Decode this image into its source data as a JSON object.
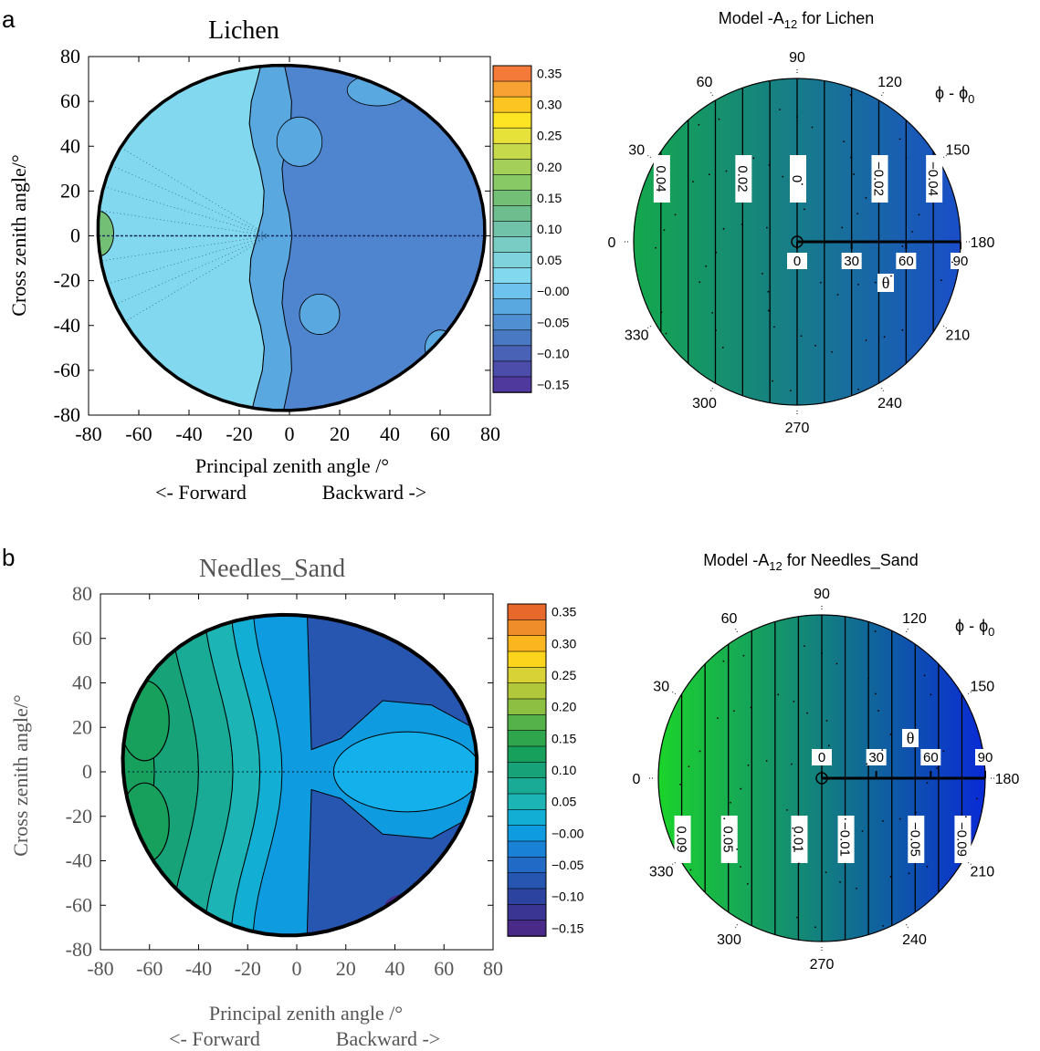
{
  "panel_labels": [
    "a",
    "b"
  ],
  "chart_data": [
    {
      "type": "heatmap",
      "title": "Lichen",
      "xlabel": "Principal zenith angle /°",
      "xlabel_sub_left": "<- Forward",
      "xlabel_sub_right": "Backward ->",
      "ylabel": "Cross zenith angle/°",
      "xlim": [
        -80,
        80
      ],
      "ylim": [
        -80,
        80
      ],
      "x_ticks": [
        "-80",
        "-60",
        "-40",
        "-20",
        "0",
        "20",
        "40",
        "60",
        "80"
      ],
      "y_ticks": [
        "80",
        "60",
        "40",
        "20",
        "0",
        "-20",
        "-40",
        "-60",
        "-80"
      ],
      "colorbar_ticks": [
        "0.35",
        "0.30",
        "0.25",
        "0.20",
        "0.15",
        "0.10",
        "0.05",
        "−0.00",
        "−0.05",
        "−0.10",
        "−0.15"
      ],
      "colorbar_levels": [
        0.35,
        0.325,
        0.3,
        0.275,
        0.25,
        0.225,
        0.2,
        0.175,
        0.15,
        0.125,
        0.1,
        0.075,
        0.05,
        0.025,
        0.0,
        -0.025,
        -0.05,
        -0.075,
        -0.1,
        -0.125,
        -0.15
      ],
      "colorbar_colors": [
        "#f47a3a",
        "#f8a233",
        "#fcc521",
        "#fde524",
        "#e6e23a",
        "#c5d94a",
        "#a4cf58",
        "#88c865",
        "#74bf76",
        "#6dbd8e",
        "#70c2a8",
        "#78ccc4",
        "#7fd3dc",
        "#82d8ee",
        "#6dc3ee",
        "#5aa8e0",
        "#4f8fd2",
        "#4a79c4",
        "#4a62b6",
        "#4c4caa",
        "#50399d"
      ],
      "regions": [
        {
          "name": "forward-region",
          "value": 0.05,
          "color": "#82d8ee"
        },
        {
          "name": "transition-band",
          "value": -0.0,
          "color": "#5aa8e0"
        },
        {
          "name": "backward-region",
          "value": -0.05,
          "color": "#4f84cf"
        }
      ]
    },
    {
      "type": "heatmap",
      "title": "Model -A12 for Lichen",
      "title_main": "Model -A",
      "title_sub": "12",
      "title_tail": " for Lichen",
      "azimuth_label": "ϕ - ϕ0",
      "azimuth_main": "ϕ - ϕ",
      "azimuth_sub": "0",
      "azimuth_ticks": [
        "0",
        "30",
        "60",
        "90",
        "120",
        "150",
        "180",
        "210",
        "240",
        "270",
        "300",
        "330"
      ],
      "radial_label": "θ",
      "radial_ticks": [
        "0",
        "30",
        "60",
        "90"
      ],
      "contour_labels": [
        "0.04",
        "0.02",
        "0",
        "−0.02",
        "−0.04"
      ],
      "contour_values": [
        0.04,
        0.02,
        0,
        -0.02,
        -0.04
      ],
      "color_range": {
        "start": "#14a84c",
        "end": "#1a4ec8"
      }
    },
    {
      "type": "heatmap",
      "title": "Needles_Sand",
      "xlabel": "Principal zenith angle /°",
      "xlabel_sub_left": "<- Forward",
      "xlabel_sub_right": "Backward ->",
      "ylabel": "Cross zenith angle/°",
      "xlim": [
        -80,
        80
      ],
      "ylim": [
        -80,
        80
      ],
      "x_ticks": [
        "-80",
        "-60",
        "-40",
        "-20",
        "0",
        "20",
        "40",
        "60",
        "80"
      ],
      "y_ticks": [
        "80",
        "60",
        "40",
        "20",
        "0",
        "-20",
        "-40",
        "-60",
        "-80"
      ],
      "colorbar_ticks": [
        "0.35",
        "0.30",
        "0.25",
        "0.20",
        "0.15",
        "0.10",
        "0.05",
        "−0.00",
        "−0.05",
        "−0.10",
        "−0.15"
      ],
      "colorbar_levels": [
        0.35,
        0.325,
        0.3,
        0.275,
        0.25,
        0.225,
        0.2,
        0.175,
        0.15,
        0.125,
        0.1,
        0.075,
        0.05,
        0.025,
        0.0,
        -0.025,
        -0.05,
        -0.075,
        -0.1,
        -0.125,
        -0.15
      ],
      "colorbar_colors": [
        "#e8672b",
        "#f08d2b",
        "#fbb51e",
        "#fcd41c",
        "#d9d236",
        "#b1c83a",
        "#8cbf42",
        "#55b24a",
        "#2fa64d",
        "#17a05c",
        "#17a277",
        "#19ab96",
        "#1cb4b4",
        "#13aed3",
        "#0e9be0",
        "#1a82d6",
        "#216bc6",
        "#2756b1",
        "#2c44a0",
        "#3a3593",
        "#4a2a89"
      ],
      "regions": [
        {
          "name": "forward-band-1",
          "value": 0.125,
          "color": "#17a05c"
        },
        {
          "name": "forward-band-2",
          "value": 0.1,
          "color": "#17a277"
        },
        {
          "name": "forward-band-3",
          "value": 0.075,
          "color": "#19ab96"
        },
        {
          "name": "forward-band-4",
          "value": 0.05,
          "color": "#1cb4b4"
        },
        {
          "name": "forward-band-5",
          "value": 0.025,
          "color": "#13aed3"
        },
        {
          "name": "center-band",
          "value": -0.025,
          "color": "#0e9be0"
        },
        {
          "name": "backward-dark",
          "value": -0.075,
          "color": "#2756b1"
        },
        {
          "name": "backward-hotspot",
          "value": -0.025,
          "color": "#13b0ec"
        }
      ]
    },
    {
      "type": "heatmap",
      "title": "Model -A12 for Needles_Sand",
      "title_main": "Model -A",
      "title_sub": "12",
      "title_tail": " for Needles_Sand",
      "azimuth_label": "ϕ - ϕ0",
      "azimuth_main": "ϕ - ϕ",
      "azimuth_sub": "0",
      "azimuth_ticks": [
        "0",
        "30",
        "60",
        "90",
        "120",
        "150",
        "180",
        "210",
        "240",
        "270",
        "300",
        "330"
      ],
      "radial_label": "θ",
      "radial_ticks": [
        "0",
        "30",
        "60",
        "90"
      ],
      "contour_labels": [
        "0.09",
        "0.05",
        "0.01",
        "−0.01",
        "−0.05",
        "−0.09"
      ],
      "contour_values": [
        0.09,
        0.05,
        0.01,
        -0.01,
        -0.05,
        -0.09
      ],
      "color_range": {
        "start": "#1bd42a",
        "end": "#0a2ad6"
      }
    }
  ]
}
